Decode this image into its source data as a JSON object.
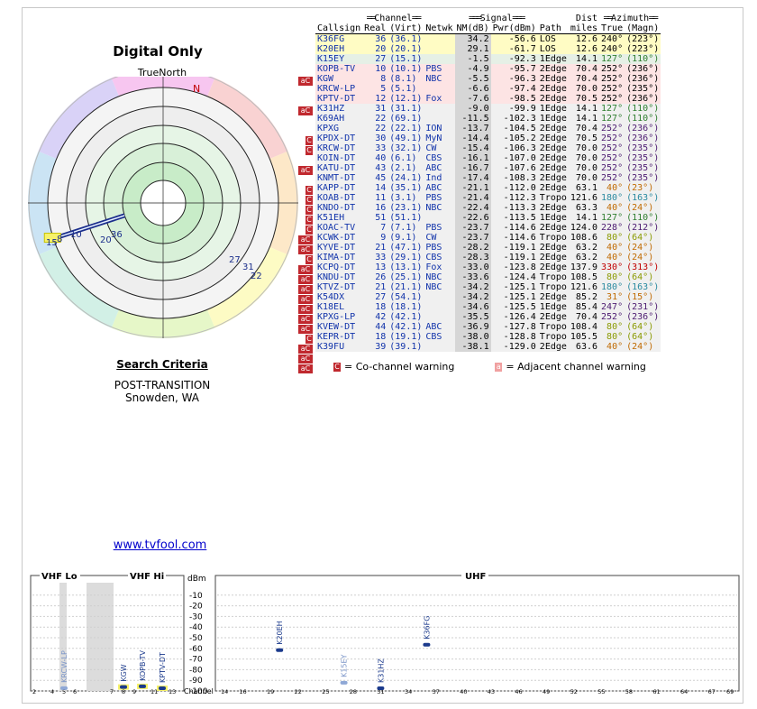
{
  "polar": {
    "title": "Digital Only",
    "north_label": "TrueNorth",
    "north_marker": "N",
    "markers": [
      {
        "label": "8",
        "azimuth": 252,
        "ring": 5
      },
      {
        "label": "15",
        "azimuth": 252,
        "ring": 5
      },
      {
        "label": "10",
        "azimuth": 252,
        "ring": 4
      },
      {
        "label": "20",
        "azimuth": 240,
        "ring": 3
      },
      {
        "label": "36",
        "azimuth": 240,
        "ring": 2
      },
      {
        "label": "27",
        "azimuth": 127,
        "ring": 4
      },
      {
        "label": "31",
        "azimuth": 127,
        "ring": 4
      },
      {
        "label": "22",
        "azimuth": 127,
        "ring": 5
      }
    ]
  },
  "criteria": {
    "title": "Search Criteria",
    "line1": "POST-TRANSITION",
    "line2": "Snowden, WA"
  },
  "link_text": "www.tvfool.com",
  "table_headers": {
    "group_channel": "Channel",
    "group_signal": "Signal",
    "group_dist": "Dist",
    "group_azimuth": "Azimuth",
    "callsign": "Callsign",
    "real": "Real",
    "virt": "(Virt)",
    "netwk": "Netwk",
    "nm": "NM(dB)",
    "pwr": "Pwr(dBm)",
    "path": "Path",
    "miles": "miles",
    "true": "True",
    "magn": "(Magn)"
  },
  "rows": [
    {
      "callsign": "K36FG",
      "real": "36",
      "virt": "(36.1)",
      "netwk": "",
      "nm": "34.2",
      "pwr": "-56.6",
      "path": "LOS",
      "dist": "12.6",
      "az_true": "240°",
      "az_magn": "(223°)",
      "bg": "#fffcc4",
      "color": "#000",
      "warn": ""
    },
    {
      "callsign": "K20EH",
      "real": "20",
      "virt": "(20.1)",
      "netwk": "",
      "nm": "29.1",
      "pwr": "-61.7",
      "path": "LOS",
      "dist": "12.6",
      "az_true": "240°",
      "az_magn": "(223°)",
      "bg": "#fffcc4",
      "color": "#000",
      "warn": ""
    },
    {
      "callsign": "K15EY",
      "real": "27",
      "virt": "(15.1)",
      "netwk": "",
      "nm": "-1.5",
      "pwr": "-92.3",
      "path": "1Edge",
      "dist": "14.1",
      "az_true": "127°",
      "az_magn": "(110°)",
      "bg": "#e6f0e6",
      "color": "#2e7d2e",
      "warn": "aC"
    },
    {
      "callsign": "KOPB-TV",
      "real": "10",
      "virt": "(10.1)",
      "netwk": "PBS",
      "nm": "-4.9",
      "pwr": "-95.7",
      "path": "2Edge",
      "dist": "70.4",
      "az_true": "252°",
      "az_magn": "(236°)",
      "bg": "#fde4e4",
      "color": "#000",
      "warn": ""
    },
    {
      "callsign": "KGW",
      "real": "8",
      "virt": "(8.1)",
      "netwk": "NBC",
      "nm": "-5.5",
      "pwr": "-96.3",
      "path": "2Edge",
      "dist": "70.4",
      "az_true": "252°",
      "az_magn": "(236°)",
      "bg": "#fde4e4",
      "color": "#000",
      "warn": ""
    },
    {
      "callsign": "KRCW-LP",
      "real": "5",
      "virt": "(5.1)",
      "netwk": "",
      "nm": "-6.6",
      "pwr": "-97.4",
      "path": "2Edge",
      "dist": "70.0",
      "az_true": "252°",
      "az_magn": "(235°)",
      "bg": "#fde4e4",
      "color": "#000",
      "warn": "aC"
    },
    {
      "callsign": "KPTV-DT",
      "real": "12",
      "virt": "(12.1)",
      "netwk": "Fox",
      "nm": "-7.6",
      "pwr": "-98.5",
      "path": "2Edge",
      "dist": "70.5",
      "az_true": "252°",
      "az_magn": "(236°)",
      "bg": "#fde4e4",
      "color": "#000",
      "warn": ""
    },
    {
      "callsign": "K31HZ",
      "real": "31",
      "virt": "(31.1)",
      "netwk": "",
      "nm": "-9.0",
      "pwr": "-99.9",
      "path": "1Edge",
      "dist": "14.1",
      "az_true": "127°",
      "az_magn": "(110°)",
      "bg": "#f0f0f0",
      "color": "#2e7d2e",
      "warn": ""
    },
    {
      "callsign": "K69AH",
      "real": "22",
      "virt": "(69.1)",
      "netwk": "",
      "nm": "-11.5",
      "pwr": "-102.3",
      "path": "1Edge",
      "dist": "14.1",
      "az_true": "127°",
      "az_magn": "(110°)",
      "bg": "#f0f0f0",
      "color": "#2e7d2e",
      "warn": "C"
    },
    {
      "callsign": "KPXG",
      "real": "22",
      "virt": "(22.1)",
      "netwk": "ION",
      "nm": "-13.7",
      "pwr": "-104.5",
      "path": "2Edge",
      "dist": "70.4",
      "az_true": "252°",
      "az_magn": "(236°)",
      "bg": "#f0f0f0",
      "color": "#4b1a70",
      "warn": "C"
    },
    {
      "callsign": "KPDX-DT",
      "real": "30",
      "virt": "(49.1)",
      "netwk": "MyN",
      "nm": "-14.4",
      "pwr": "-105.2",
      "path": "2Edge",
      "dist": "70.5",
      "az_true": "252°",
      "az_magn": "(236°)",
      "bg": "#f0f0f0",
      "color": "#4b1a70",
      "warn": ""
    },
    {
      "callsign": "KRCW-DT",
      "real": "33",
      "virt": "(32.1)",
      "netwk": "CW",
      "nm": "-15.4",
      "pwr": "-106.3",
      "path": "2Edge",
      "dist": "70.0",
      "az_true": "252°",
      "az_magn": "(235°)",
      "bg": "#f0f0f0",
      "color": "#4b1a70",
      "warn": "aC"
    },
    {
      "callsign": "KOIN-DT",
      "real": "40",
      "virt": "(6.1)",
      "netwk": "CBS",
      "nm": "-16.1",
      "pwr": "-107.0",
      "path": "2Edge",
      "dist": "70.0",
      "az_true": "252°",
      "az_magn": "(235°)",
      "bg": "#f0f0f0",
      "color": "#4b1a70",
      "warn": ""
    },
    {
      "callsign": "KATU-DT",
      "real": "43",
      "virt": "(2.1)",
      "netwk": "ABC",
      "nm": "-16.7",
      "pwr": "-107.6",
      "path": "2Edge",
      "dist": "70.0",
      "az_true": "252°",
      "az_magn": "(235°)",
      "bg": "#f0f0f0",
      "color": "#4b1a70",
      "warn": "C"
    },
    {
      "callsign": "KNMT-DT",
      "real": "45",
      "virt": "(24.1)",
      "netwk": "Ind",
      "nm": "-17.4",
      "pwr": "-108.3",
      "path": "2Edge",
      "dist": "70.0",
      "az_true": "252°",
      "az_magn": "(235°)",
      "bg": "#f0f0f0",
      "color": "#4b1a70",
      "warn": "C"
    },
    {
      "callsign": "KAPP-DT",
      "real": "14",
      "virt": "(35.1)",
      "netwk": "ABC",
      "nm": "-21.1",
      "pwr": "-112.0",
      "path": "2Edge",
      "dist": "63.1",
      "az_true": "40°",
      "az_magn": "(23°)",
      "bg": "#f0f0f0",
      "color": "#c06a00",
      "warn": "C"
    },
    {
      "callsign": "KOAB-DT",
      "real": "11",
      "virt": "(3.1)",
      "netwk": "PBS",
      "nm": "-21.4",
      "pwr": "-112.3",
      "path": "Tropo",
      "dist": "121.6",
      "az_true": "180°",
      "az_magn": "(163°)",
      "bg": "#f0f0f0",
      "color": "#2a8aa0",
      "warn": "C"
    },
    {
      "callsign": "KNDO-DT",
      "real": "16",
      "virt": "(23.1)",
      "netwk": "NBC",
      "nm": "-22.4",
      "pwr": "-113.3",
      "path": "2Edge",
      "dist": "63.3",
      "az_true": "40°",
      "az_magn": "(24°)",
      "bg": "#f0f0f0",
      "color": "#c06a00",
      "warn": "C"
    },
    {
      "callsign": "K51EH",
      "real": "51",
      "virt": "(51.1)",
      "netwk": "",
      "nm": "-22.6",
      "pwr": "-113.5",
      "path": "1Edge",
      "dist": "14.1",
      "az_true": "127°",
      "az_magn": "(110°)",
      "bg": "#f0f0f0",
      "color": "#2e7d2e",
      "warn": "aC"
    },
    {
      "callsign": "KOAC-TV",
      "real": "7",
      "virt": "(7.1)",
      "netwk": "PBS",
      "nm": "-23.7",
      "pwr": "-114.6",
      "path": "2Edge",
      "dist": "124.0",
      "az_true": "228°",
      "az_magn": "(212°)",
      "bg": "#f0f0f0",
      "color": "#4b1a70",
      "warn": "aC"
    },
    {
      "callsign": "KCWK-DT",
      "real": "9",
      "virt": "(9.1)",
      "netwk": "CW",
      "nm": "-23.7",
      "pwr": "-114.6",
      "path": "Tropo",
      "dist": "108.6",
      "az_true": "80°",
      "az_magn": "(64°)",
      "bg": "#f0f0f0",
      "color": "#8a9a00",
      "warn": "C"
    },
    {
      "callsign": "KYVE-DT",
      "real": "21",
      "virt": "(47.1)",
      "netwk": "PBS",
      "nm": "-28.2",
      "pwr": "-119.1",
      "path": "2Edge",
      "dist": "63.2",
      "az_true": "40°",
      "az_magn": "(24°)",
      "bg": "#f0f0f0",
      "color": "#c06a00",
      "warn": "aC"
    },
    {
      "callsign": "KIMA-DT",
      "real": "33",
      "virt": "(29.1)",
      "netwk": "CBS",
      "nm": "-28.3",
      "pwr": "-119.1",
      "path": "2Edge",
      "dist": "63.2",
      "az_true": "40°",
      "az_magn": "(24°)",
      "bg": "#f0f0f0",
      "color": "#c06a00",
      "warn": "aC"
    },
    {
      "callsign": "KCPQ-DT",
      "real": "13",
      "virt": "(13.1)",
      "netwk": "Fox",
      "nm": "-33.0",
      "pwr": "-123.8",
      "path": "2Edge",
      "dist": "137.9",
      "az_true": "330°",
      "az_magn": "(313°)",
      "bg": "#f0f0f0",
      "color": "#c00000",
      "warn": "aC"
    },
    {
      "callsign": "KNDU-DT",
      "real": "26",
      "virt": "(25.1)",
      "netwk": "NBC",
      "nm": "-33.6",
      "pwr": "-124.4",
      "path": "Tropo",
      "dist": "108.5",
      "az_true": "80°",
      "az_magn": "(64°)",
      "bg": "#f0f0f0",
      "color": "#8a9a00",
      "warn": "aC"
    },
    {
      "callsign": "KTVZ-DT",
      "real": "21",
      "virt": "(21.1)",
      "netwk": "NBC",
      "nm": "-34.2",
      "pwr": "-125.1",
      "path": "Tropo",
      "dist": "121.6",
      "az_true": "180°",
      "az_magn": "(163°)",
      "bg": "#f0f0f0",
      "color": "#2a8aa0",
      "warn": "aC"
    },
    {
      "callsign": "K54DX",
      "real": "27",
      "virt": "(54.1)",
      "netwk": "",
      "nm": "-34.2",
      "pwr": "-125.1",
      "path": "2Edge",
      "dist": "85.2",
      "az_true": "31°",
      "az_magn": "(15°)",
      "bg": "#f0f0f0",
      "color": "#c06a00",
      "warn": "aC"
    },
    {
      "callsign": "K18EL",
      "real": "18",
      "virt": "(18.1)",
      "netwk": "",
      "nm": "-34.6",
      "pwr": "-125.5",
      "path": "1Edge",
      "dist": "85.4",
      "az_true": "247°",
      "az_magn": "(231°)",
      "bg": "#f0f0f0",
      "color": "#4b1a70",
      "warn": "aC"
    },
    {
      "callsign": "KPXG-LP",
      "real": "42",
      "virt": "(42.1)",
      "netwk": "",
      "nm": "-35.5",
      "pwr": "-126.4",
      "path": "2Edge",
      "dist": "70.4",
      "az_true": "252°",
      "az_magn": "(236°)",
      "bg": "#f0f0f0",
      "color": "#4b1a70",
      "warn": "C"
    },
    {
      "callsign": "KVEW-DT",
      "real": "44",
      "virt": "(42.1)",
      "netwk": "ABC",
      "nm": "-36.9",
      "pwr": "-127.8",
      "path": "Tropo",
      "dist": "108.4",
      "az_true": "80°",
      "az_magn": "(64°)",
      "bg": "#f0f0f0",
      "color": "#8a9a00",
      "warn": "aC"
    },
    {
      "callsign": "KEPR-DT",
      "real": "18",
      "virt": "(19.1)",
      "netwk": "CBS",
      "nm": "-38.0",
      "pwr": "-128.8",
      "path": "Tropo",
      "dist": "105.5",
      "az_true": "80°",
      "az_magn": "(64°)",
      "bg": "#f0f0f0",
      "color": "#8a9a00",
      "warn": "aC"
    },
    {
      "callsign": "K39FU",
      "real": "39",
      "virt": "(39.1)",
      "netwk": "",
      "nm": "-38.1",
      "pwr": "-129.0",
      "path": "2Edge",
      "dist": "63.6",
      "az_true": "40°",
      "az_magn": "(24°)",
      "bg": "#f0f0f0",
      "color": "#c06a00",
      "warn": "aC"
    }
  ],
  "legend": {
    "co_icon": "C",
    "co_text": "= Co-channel warning",
    "adj_icon": "a",
    "adj_text": "= Adjacent channel warning"
  },
  "chart_data": {
    "type": "bar",
    "title": "",
    "ylabel": "dBm",
    "ylim": [
      -100,
      0
    ],
    "yticks": [
      "-10",
      "-20",
      "-30",
      "-40",
      "-50",
      "-60",
      "-70",
      "-80",
      "-90",
      "-100"
    ],
    "sections": [
      "VHF Lo",
      "VHF Hi",
      "UHF"
    ],
    "xlabel": "Channel",
    "vhf_ticks": [
      "2",
      "4",
      "5",
      "6",
      "7",
      "8",
      "9",
      "11",
      "13"
    ],
    "uhf_ticks": [
      "14",
      "16",
      "19",
      "22",
      "25",
      "28",
      "31",
      "34",
      "37",
      "40",
      "43",
      "46",
      "49",
      "52",
      "55",
      "58",
      "61",
      "64",
      "67",
      "69"
    ],
    "stations": [
      {
        "label": "KRCW-LP",
        "channel": 5,
        "dbm": -97.4,
        "strong": false
      },
      {
        "label": "KGW",
        "channel": 8,
        "dbm": -96.3,
        "strong": true
      },
      {
        "label": "KOPB-TV",
        "channel": 10,
        "dbm": -95.7,
        "strong": true
      },
      {
        "label": "KPTV-DT",
        "channel": 12,
        "dbm": -98.5,
        "strong": true
      },
      {
        "label": "K20EH",
        "channel": 20,
        "dbm": -61.7,
        "strong": true
      },
      {
        "label": "K15EY",
        "channel": 27,
        "dbm": -92.3,
        "strong": false
      },
      {
        "label": "K31HZ",
        "channel": 31,
        "dbm": -99.9,
        "strong": true
      },
      {
        "label": "K36FG",
        "channel": 36,
        "dbm": -56.6,
        "strong": true
      }
    ]
  }
}
